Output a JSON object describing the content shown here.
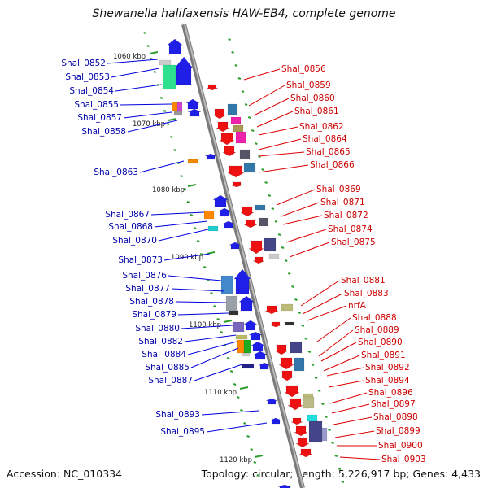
{
  "title": "Shewanella halifaxensis HAW-EB4, complete genome",
  "footer": {
    "accession": "Accession: NC_010334",
    "summary": "Topology: circular; Length: 5,226,917 bp; Genes: 4,433"
  },
  "colors": {
    "backbone": "#999999",
    "forward_arrow": "#1f1fe8",
    "reverse_arrow": "#ee1111",
    "left_label": "#0000aa",
    "right_label": "#cc0000",
    "tick": "#2e9e2e"
  },
  "kbp_markers": [
    "1060 kbp",
    "1070 kbp",
    "1080 kbp",
    "1090 kbp",
    "1100 kbp",
    "1110 kbp",
    "1120 kbp"
  ],
  "left_labels": [
    "Shal_0852",
    "Shal_0853",
    "Shal_0854",
    "Shal_0855",
    "Shal_0857",
    "Shal_0858",
    "Shal_0863",
    "Shal_0867",
    "Shal_0868",
    "Shal_0870",
    "Shal_0873",
    "Shal_0876",
    "Shal_0877",
    "Shal_0878",
    "Shal_0879",
    "Shal_0880",
    "Shal_0882",
    "Shal_0884",
    "Shal_0885",
    "Shal_0887",
    "Shal_0893",
    "Shal_0895"
  ],
  "right_labels": [
    "Shal_0856",
    "Shal_0859",
    "Shal_0860",
    "Shal_0861",
    "Shal_0862",
    "Shal_0864",
    "Shal_0865",
    "Shal_0866",
    "Shal_0869",
    "Shal_0871",
    "Shal_0872",
    "Shal_0874",
    "Shal_0875",
    "Shal_0881",
    "Shal_0883",
    "nrfA",
    "Shal_0888",
    "Shal_0889",
    "Shal_0890",
    "Shal_0891",
    "Shal_0892",
    "Shal_0894",
    "Shal_0896",
    "Shal_0897",
    "Shal_0898",
    "Shal_0899",
    "Shal_0900",
    "Shal_0903"
  ]
}
